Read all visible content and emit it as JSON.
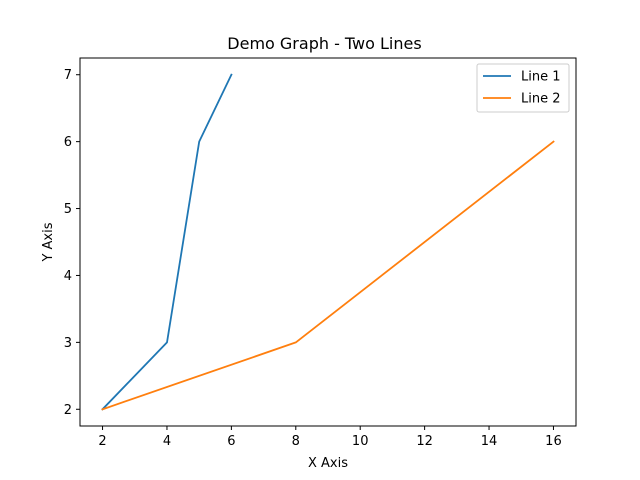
{
  "chart_data": {
    "type": "line",
    "title": "Demo Graph - Two Lines",
    "xlabel": "X Axis",
    "ylabel": "Y Axis",
    "xlim": [
      1.3,
      16.7
    ],
    "ylim": [
      1.75,
      7.25
    ],
    "xticks": [
      2,
      4,
      6,
      8,
      10,
      12,
      14,
      16
    ],
    "yticks": [
      2,
      3,
      4,
      5,
      6,
      7
    ],
    "grid": false,
    "legend_position": "top-right",
    "series": [
      {
        "name": "Line 1",
        "color": "#1f77b4",
        "x": [
          2,
          4,
          5,
          6
        ],
        "y": [
          2,
          3,
          6,
          7
        ]
      },
      {
        "name": "Line 2",
        "color": "#ff7f0e",
        "x": [
          2,
          8,
          16
        ],
        "y": [
          2,
          3,
          6
        ]
      }
    ]
  }
}
